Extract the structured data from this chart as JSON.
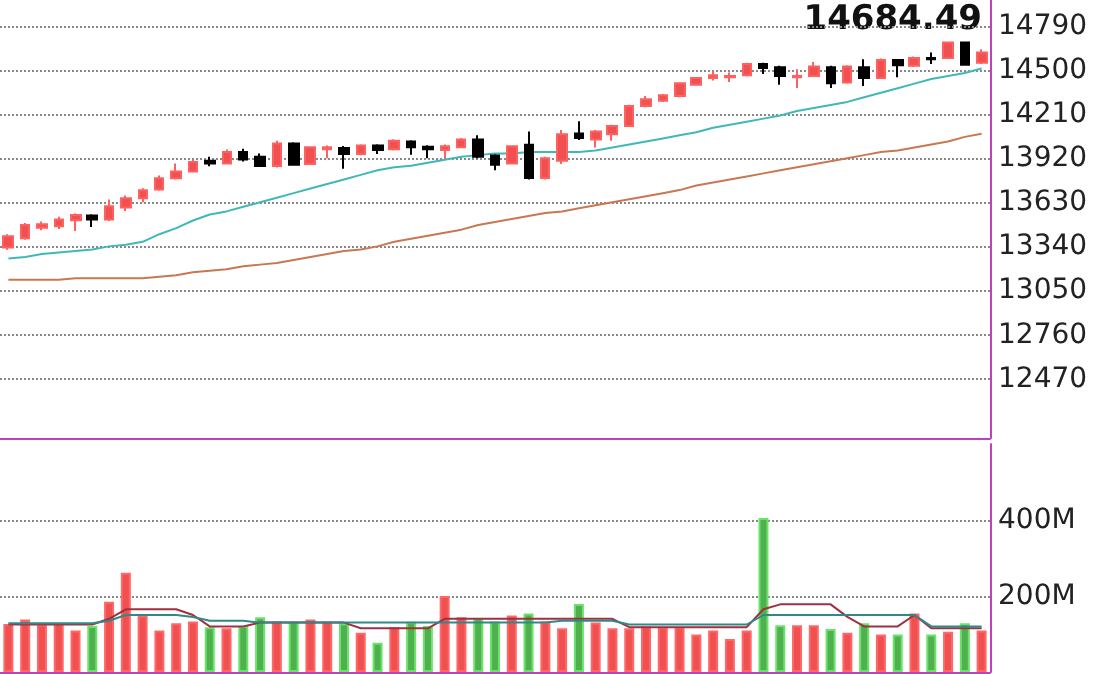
{
  "chart_data": [
    {
      "type": "candlestick",
      "categories": [
        null,
        null,
        null,
        null,
        null,
        null,
        null,
        null,
        null,
        null,
        null,
        null,
        null,
        null,
        null,
        null,
        null,
        null,
        null,
        null,
        null,
        null,
        null,
        null,
        null,
        null,
        null,
        null,
        null,
        null,
        null,
        null,
        null,
        null,
        null,
        null,
        null,
        null,
        null,
        null,
        null,
        null,
        null,
        null,
        null,
        null,
        null,
        null,
        null,
        null,
        null,
        null,
        null,
        null,
        null,
        null,
        null,
        null,
        null
      ],
      "ohlc": [
        [
          13332,
          13419,
          13318,
          13406
        ],
        [
          13393,
          13494,
          13384,
          13481
        ],
        [
          13463,
          13503,
          13446,
          13485
        ],
        [
          13472,
          13534,
          13455,
          13516
        ],
        [
          13512,
          13556,
          13441,
          13547
        ],
        [
          13543,
          13551,
          13468,
          13516
        ],
        [
          13516,
          13648,
          13507,
          13604
        ],
        [
          13595,
          13674,
          13573,
          13657
        ],
        [
          13657,
          13722,
          13630,
          13709
        ],
        [
          13714,
          13806,
          13705,
          13788
        ],
        [
          13788,
          13885,
          13780,
          13832
        ],
        [
          13832,
          13911,
          13825,
          13894
        ],
        [
          13903,
          13929,
          13867,
          13885
        ],
        [
          13885,
          13977,
          13880,
          13960
        ],
        [
          13960,
          13982,
          13898,
          13911
        ],
        [
          13929,
          13951,
          13863,
          13868
        ],
        [
          13868,
          14034,
          13859,
          14017
        ],
        [
          14017,
          14025,
          13870,
          13877
        ],
        [
          13881,
          13996,
          13875,
          13991
        ],
        [
          13978,
          14004,
          13920,
          13991
        ],
        [
          13987,
          14000,
          13850,
          13947
        ],
        [
          13947,
          14012,
          13940,
          14004
        ],
        [
          14004,
          14012,
          13947,
          13973
        ],
        [
          13978,
          14045,
          13970,
          14035
        ],
        [
          14030,
          14038,
          13942,
          13991
        ],
        [
          13995,
          14005,
          13920,
          13978
        ],
        [
          13973,
          14010,
          13920,
          13999
        ],
        [
          13991,
          14052,
          13985,
          14043
        ],
        [
          14043,
          14070,
          13920,
          13929
        ],
        [
          13938,
          13945,
          13841,
          13877
        ],
        [
          13885,
          14005,
          13878,
          13999
        ],
        [
          14008,
          14096,
          13780,
          13789
        ],
        [
          13789,
          13929,
          13780,
          13920
        ],
        [
          13903,
          14105,
          13881,
          14078
        ],
        [
          14083,
          14162,
          14040,
          14052
        ],
        [
          14043,
          14105,
          13990,
          14096
        ],
        [
          14078,
          14140,
          14034,
          14131
        ],
        [
          14131,
          14272,
          14125,
          14263
        ],
        [
          14263,
          14329,
          14255,
          14307
        ],
        [
          14298,
          14342,
          14290,
          14333
        ],
        [
          14329,
          14420,
          14320,
          14412
        ],
        [
          14403,
          14447,
          14403,
          14447
        ],
        [
          14447,
          14491,
          14430,
          14465
        ],
        [
          14452,
          14483,
          14421,
          14461
        ],
        [
          14465,
          14548,
          14457,
          14540
        ],
        [
          14540,
          14548,
          14474,
          14513
        ],
        [
          14518,
          14527,
          14403,
          14461
        ],
        [
          14452,
          14505,
          14381,
          14461
        ],
        [
          14461,
          14553,
          14455,
          14522
        ],
        [
          14518,
          14527,
          14381,
          14412
        ],
        [
          14417,
          14531,
          14410,
          14522
        ],
        [
          14518,
          14570,
          14395,
          14447
        ],
        [
          14447,
          14575,
          14440,
          14566
        ],
        [
          14566,
          14572,
          14452,
          14531
        ],
        [
          14527,
          14588,
          14520,
          14579
        ],
        [
          14579,
          14614,
          14540,
          14570
        ],
        [
          14579,
          14684,
          14572,
          14680
        ],
        [
          14680,
          14684,
          14527,
          14535
        ],
        [
          14548,
          14636,
          14540,
          14614
        ]
      ],
      "colors": [
        "#f05050",
        "#f05050",
        "#f05050",
        "#f05050",
        "#f05050",
        "#000000",
        "#f05050",
        "#f05050",
        "#f05050",
        "#f05050",
        "#f05050",
        "#f05050",
        "#000000",
        "#f05050",
        "#000000",
        "#000000",
        "#f05050",
        "#000000",
        "#f05050",
        "#f05050",
        "#000000",
        "#f05050",
        "#000000",
        "#f05050",
        "#000000",
        "#000000",
        "#f05050",
        "#f05050",
        "#000000",
        "#000000",
        "#f05050",
        "#000000",
        "#f05050",
        "#f05050",
        "#000000",
        "#f05050",
        "#f05050",
        "#f05050",
        "#f05050",
        "#f05050",
        "#f05050",
        "#f05050",
        "#f05050",
        "#f05050",
        "#f05050",
        "#000000",
        "#000000",
        "#f05050",
        "#f05050",
        "#000000",
        "#f05050",
        "#000000",
        "#f05050",
        "#000000",
        "#f05050",
        "#000000",
        "#f05050",
        "#000000",
        "#f05050"
      ],
      "series": [
        {
          "type": "line",
          "color": "#40b8b8",
          "values": [
            13260,
            13270,
            13290,
            13300,
            13310,
            13320,
            13340,
            13350,
            13370,
            13420,
            13460,
            13510,
            13550,
            13570,
            13600,
            13630,
            13660,
            13690,
            13720,
            13750,
            13780,
            13810,
            13840,
            13860,
            13870,
            13890,
            13910,
            13930,
            13940,
            13950,
            13950,
            13960,
            13960,
            13960,
            13960,
            13970,
            13990,
            14010,
            14030,
            14050,
            14070,
            14090,
            14120,
            14140,
            14160,
            14180,
            14200,
            14230,
            14250,
            14270,
            14290,
            14320,
            14350,
            14380,
            14410,
            14440,
            14460,
            14480,
            14510
          ]
        },
        {
          "type": "line",
          "color": "#c87850",
          "values": [
            13120,
            13120,
            13120,
            13120,
            13130,
            13130,
            13130,
            13130,
            13130,
            13140,
            13150,
            13170,
            13180,
            13190,
            13210,
            13220,
            13230,
            13250,
            13270,
            13290,
            13310,
            13320,
            13340,
            13370,
            13390,
            13410,
            13430,
            13450,
            13480,
            13500,
            13520,
            13540,
            13560,
            13570,
            13590,
            13610,
            13630,
            13650,
            13670,
            13690,
            13710,
            13740,
            13760,
            13780,
            13800,
            13820,
            13840,
            13860,
            13880,
            13900,
            13920,
            13940,
            13960,
            13970,
            13990,
            14010,
            14030,
            14060,
            14080
          ]
        }
      ],
      "ylim": [
        12080,
        14960
      ],
      "yticks": [
        12470,
        12760,
        13050,
        13340,
        13630,
        13920,
        14210,
        14500,
        14790
      ],
      "grid": "y",
      "tick_labels": "y",
      "annotations": [
        "14684.49"
      ]
    },
    {
      "type": "bar",
      "categories": [
        null,
        null,
        null,
        null,
        null,
        null,
        null,
        null,
        null,
        null,
        null,
        null,
        null,
        null,
        null,
        null,
        null,
        null,
        null,
        null,
        null,
        null,
        null,
        null,
        null,
        null,
        null,
        null,
        null,
        null,
        null,
        null,
        null,
        null,
        null,
        null,
        null,
        null,
        null,
        null,
        null,
        null,
        null,
        null,
        null,
        null,
        null,
        null,
        null,
        null,
        null,
        null,
        null,
        null,
        null,
        null,
        null,
        null,
        null
      ],
      "series": [
        {
          "type": "bar",
          "colors": [
            "#f05050",
            "#f05050",
            "#f05050",
            "#f05050",
            "#f05050",
            "#50b050",
            "#f05050",
            "#f05050",
            "#f05050",
            "#f05050",
            "#f05050",
            "#f05050",
            "#50b050",
            "#f05050",
            "#50b050",
            "#50b050",
            "#f05050",
            "#50b050",
            "#f05050",
            "#f05050",
            "#50b050",
            "#f05050",
            "#50b050",
            "#f05050",
            "#50b050",
            "#50b050",
            "#f05050",
            "#f05050",
            "#50b050",
            "#50b050",
            "#f05050",
            "#50b050",
            "#f05050",
            "#f05050",
            "#50b050",
            "#f05050",
            "#f05050",
            "#f05050",
            "#f05050",
            "#f05050",
            "#f05050",
            "#f05050",
            "#f05050",
            "#f05050",
            "#f05050",
            "#50b050",
            "#50b050",
            "#f05050",
            "#f05050",
            "#50b050",
            "#f05050",
            "#50b050",
            "#f05050",
            "#50b050",
            "#f05050",
            "#50b050",
            "#f05050",
            "#50b050",
            "#f05050"
          ],
          "values": [
            126,
            138,
            125,
            128,
            109,
            121,
            185,
            261,
            149,
            109,
            128,
            133,
            118,
            115,
            121,
            144,
            133,
            132,
            138,
            132,
            128,
            103,
            77,
            118,
            132,
            121,
            200,
            144,
            142,
            133,
            149,
            154,
            133,
            115,
            179,
            130,
            115,
            115,
            120,
            118,
            118,
            99,
            109,
            87,
            109,
            405,
            123,
            123,
            123,
            113,
            103,
            128,
            99,
            99,
            154,
            99,
            106,
            128,
            109
          ]
        },
        {
          "type": "line",
          "color": "#a03040",
          "values": [
            125,
            125,
            125,
            125,
            125,
            125,
            140,
            165,
            165,
            165,
            165,
            150,
            120,
            120,
            120,
            130,
            130,
            130,
            130,
            130,
            130,
            115,
            115,
            115,
            115,
            115,
            140,
            140,
            140,
            140,
            140,
            140,
            140,
            140,
            140,
            140,
            140,
            118,
            118,
            118,
            118,
            118,
            118,
            118,
            118,
            165,
            178,
            178,
            178,
            178,
            145,
            120,
            120,
            120,
            150,
            115,
            115,
            115,
            115
          ]
        },
        {
          "type": "line",
          "color": "#308888",
          "values": [
            128,
            128,
            128,
            128,
            128,
            128,
            135,
            150,
            150,
            150,
            150,
            145,
            135,
            135,
            135,
            130,
            130,
            130,
            130,
            130,
            130,
            130,
            130,
            130,
            130,
            130,
            130,
            130,
            130,
            130,
            130,
            130,
            130,
            135,
            135,
            135,
            135,
            125,
            125,
            125,
            125,
            125,
            125,
            125,
            125,
            150,
            150,
            150,
            150,
            150,
            150,
            150,
            150,
            150,
            150,
            120,
            120,
            120,
            120
          ]
        }
      ],
      "ylim": [
        0,
        600
      ],
      "yticks": [
        {
          "value": 200,
          "label": "200M"
        },
        {
          "value": 400,
          "label": "400M"
        }
      ],
      "grid": "y",
      "tick_labels": "y"
    }
  ]
}
